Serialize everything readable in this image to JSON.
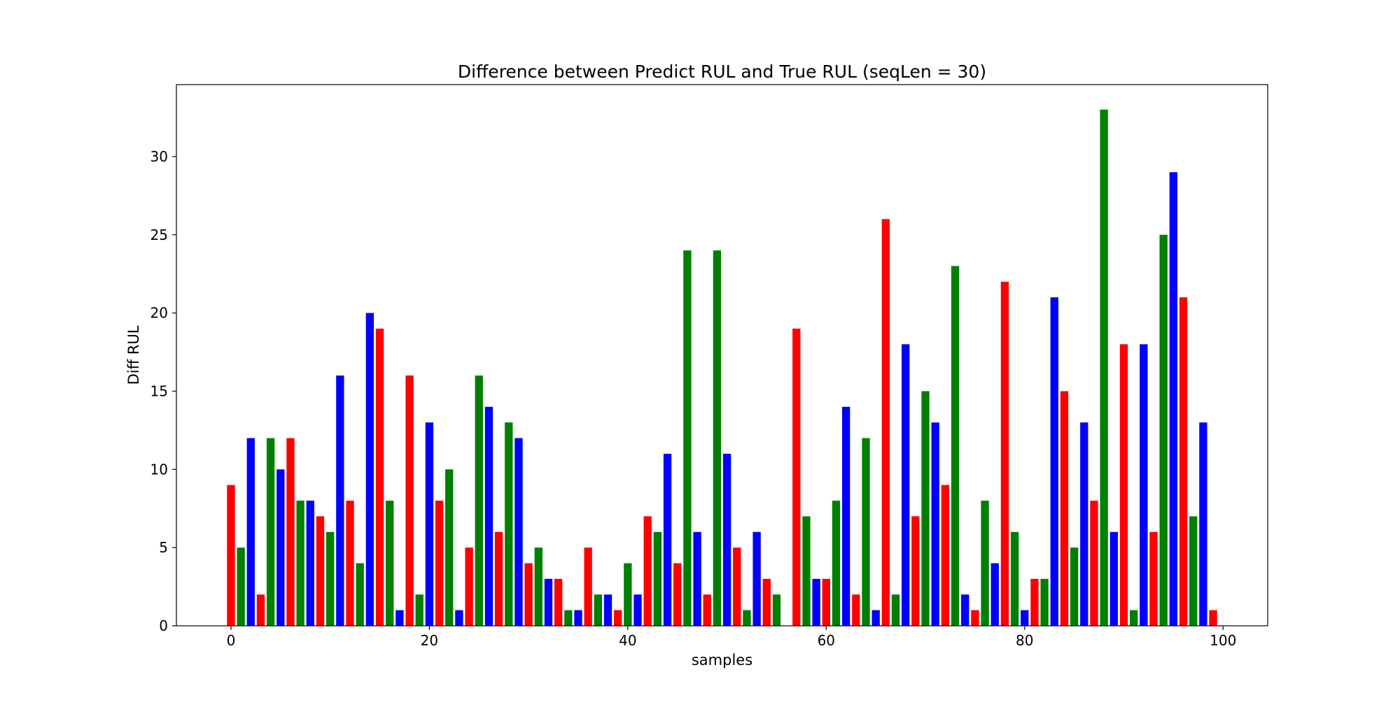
{
  "chart_data": {
    "type": "bar",
    "title": "Difference between Predict RUL and True RUL (seqLen = 30)",
    "xlabel": "samples",
    "ylabel": "Diff RUL",
    "xlim": [
      -5.5,
      104.5
    ],
    "ylim": [
      0,
      34.6
    ],
    "x_ticks": [
      0,
      20,
      40,
      60,
      80,
      100
    ],
    "y_ticks": [
      0,
      5,
      10,
      15,
      20,
      25,
      30
    ],
    "bar_colors": [
      "#ff0000",
      "#008000",
      "#0000ff"
    ],
    "grid": false,
    "x": [
      0,
      1,
      2,
      3,
      4,
      5,
      6,
      7,
      8,
      9,
      10,
      11,
      12,
      13,
      14,
      15,
      16,
      17,
      18,
      19,
      20,
      21,
      22,
      23,
      24,
      25,
      26,
      27,
      28,
      29,
      30,
      31,
      32,
      33,
      34,
      35,
      36,
      37,
      38,
      39,
      40,
      41,
      42,
      43,
      44,
      45,
      46,
      47,
      48,
      49,
      50,
      51,
      52,
      53,
      54,
      55,
      56,
      57,
      58,
      59,
      60,
      61,
      62,
      63,
      64,
      65,
      66,
      67,
      68,
      69,
      70,
      71,
      72,
      73,
      74,
      75,
      76,
      77,
      78,
      79,
      80,
      81,
      82,
      83,
      84,
      85,
      86,
      87,
      88,
      89,
      90,
      91,
      92,
      93,
      94,
      95,
      96,
      97,
      98,
      99
    ],
    "values": [
      9,
      5,
      12,
      2,
      12,
      10,
      12,
      8,
      8,
      7,
      6,
      16,
      8,
      4,
      20,
      19,
      8,
      1,
      16,
      2,
      13,
      8,
      10,
      1,
      5,
      16,
      14,
      6,
      13,
      12,
      4,
      5,
      3,
      3,
      1,
      1,
      5,
      2,
      2,
      1,
      4,
      2,
      7,
      6,
      11,
      4,
      24,
      6,
      2,
      24,
      11,
      5,
      1,
      6,
      3,
      2,
      0,
      19,
      7,
      3,
      3,
      8,
      14,
      2,
      12,
      1,
      26,
      2,
      18,
      7,
      15,
      13,
      9,
      23,
      2,
      1,
      8,
      4,
      22,
      6,
      1,
      3,
      3,
      21,
      15,
      5,
      13,
      8,
      33,
      6,
      18,
      1,
      18,
      6,
      25,
      29,
      21,
      7,
      13,
      1
    ]
  }
}
